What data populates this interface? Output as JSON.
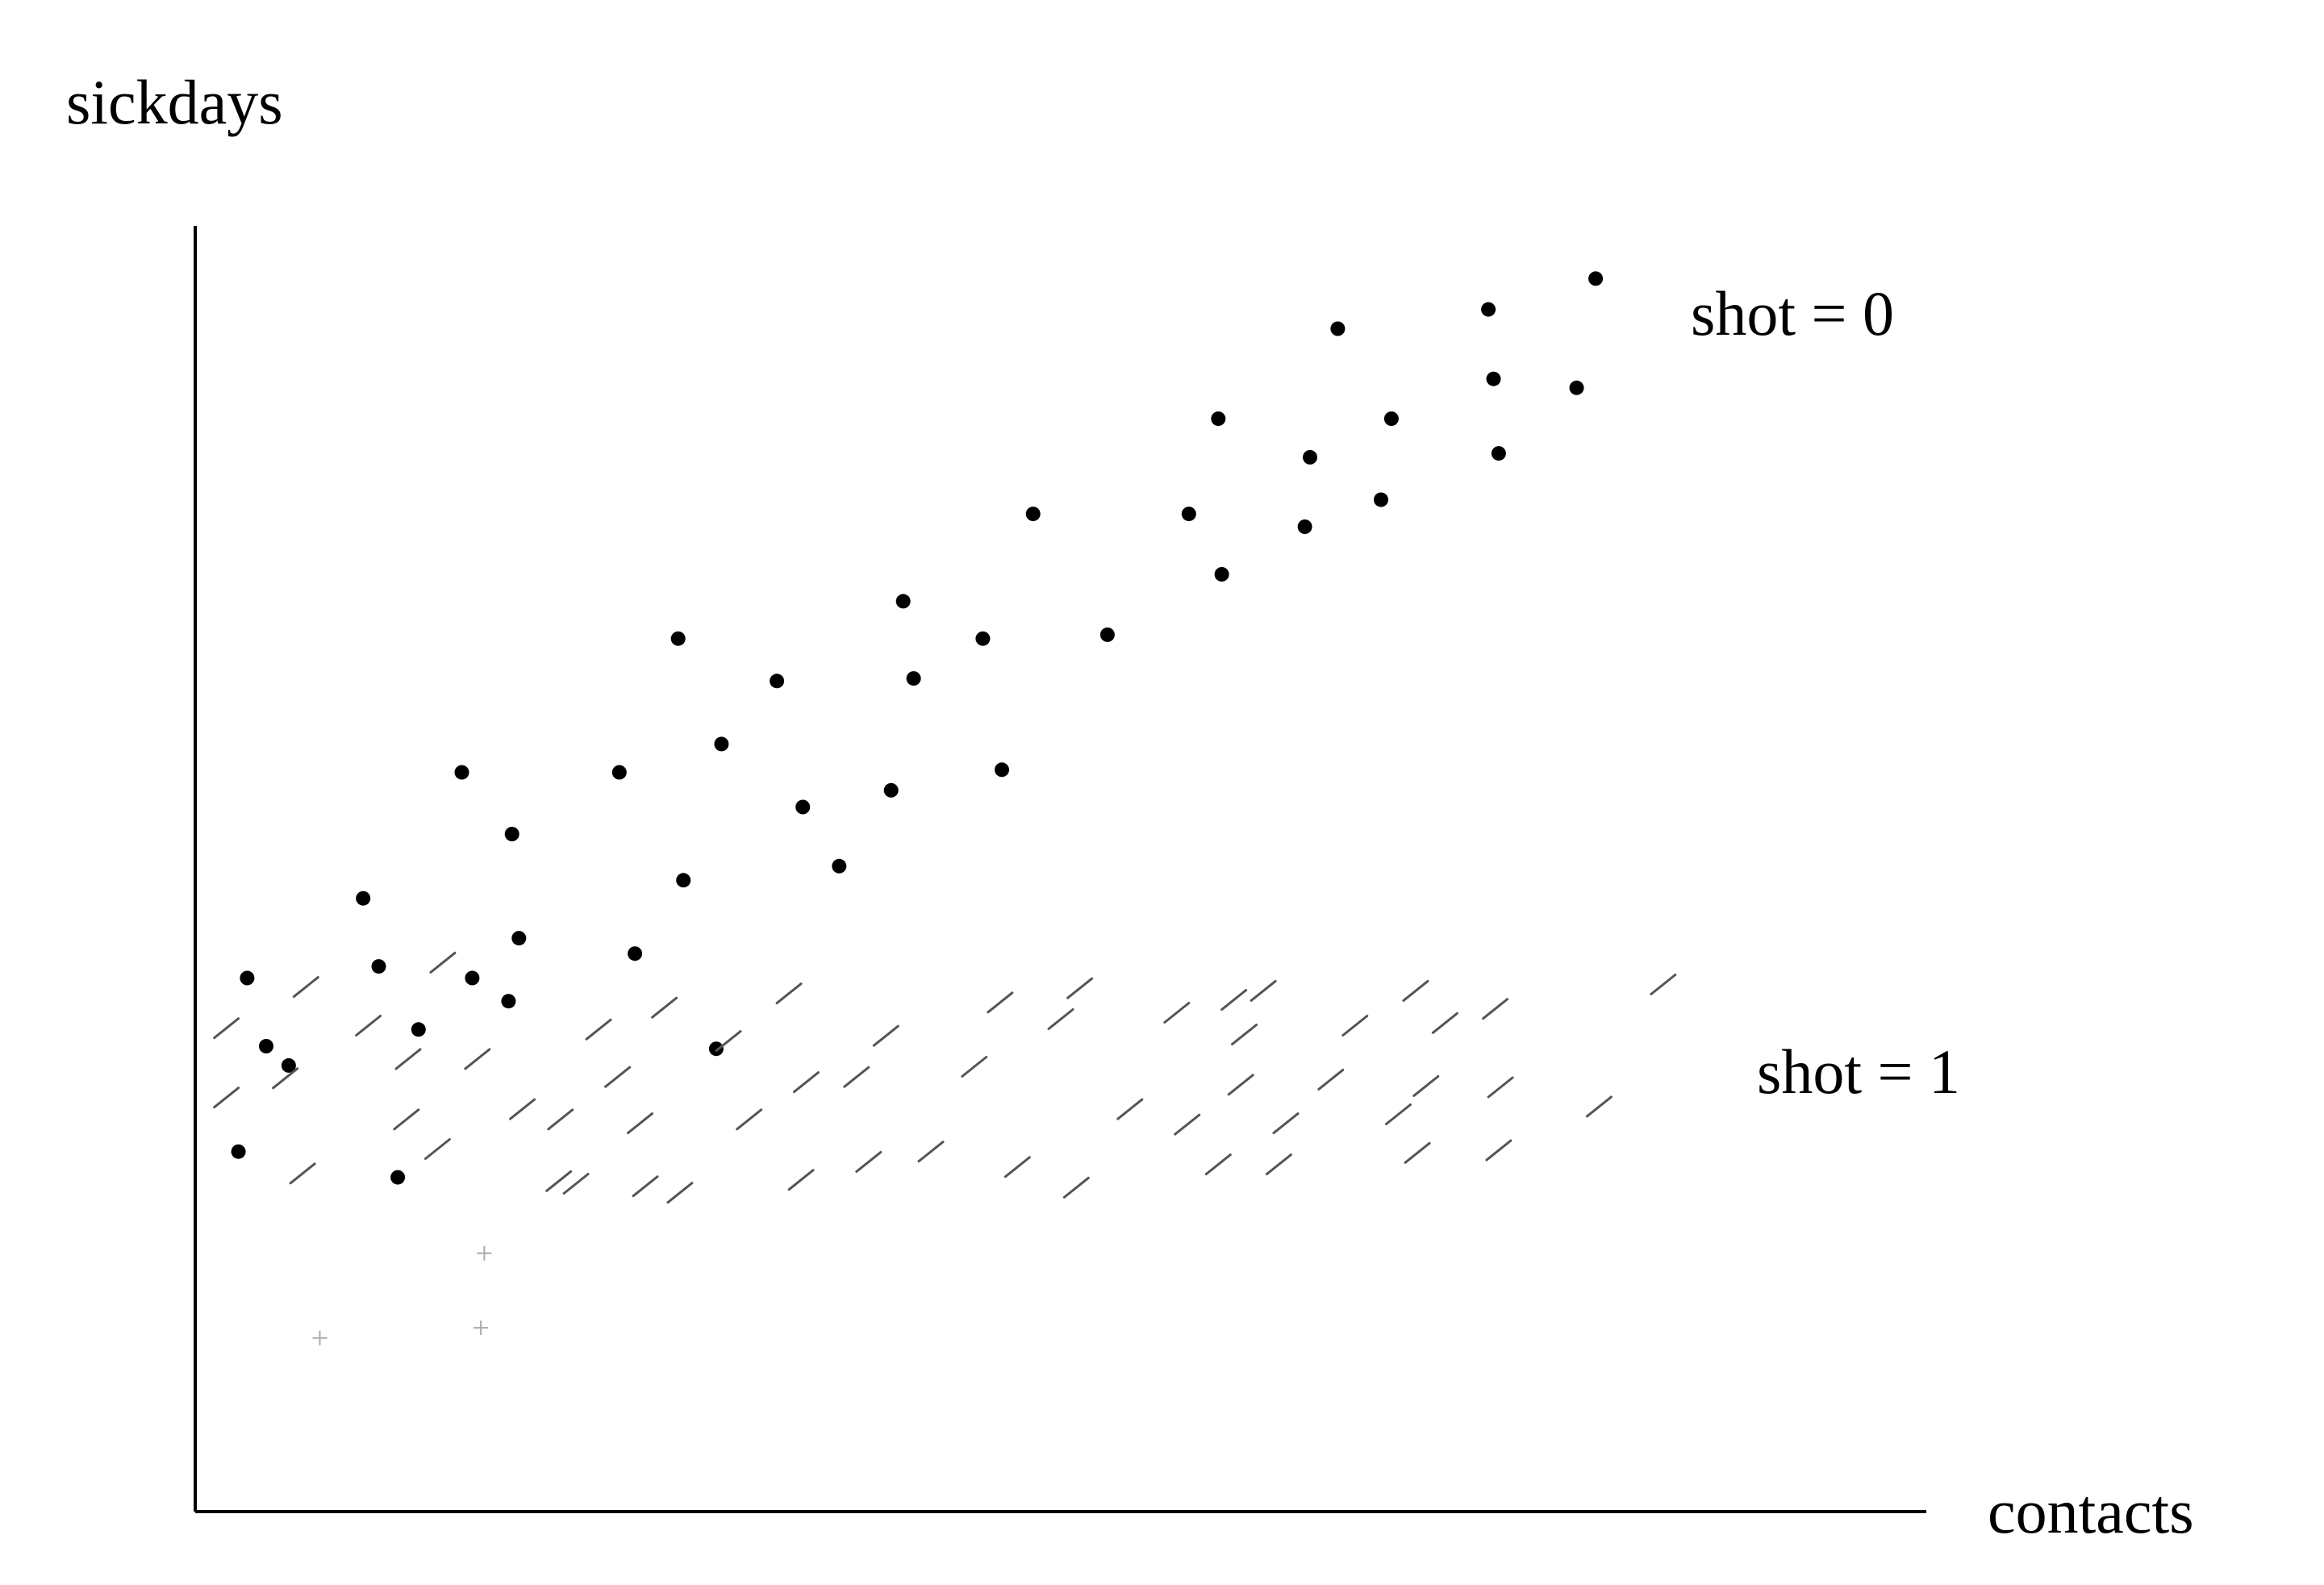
{
  "chart_data": {
    "type": "scatter",
    "title": "",
    "ylabel": "sickdays",
    "xlabel": "contacts",
    "grid": false,
    "legend": "none",
    "ticks": "none",
    "xlim": [
      0,
      100
    ],
    "ylim": [
      0,
      100
    ],
    "annotations": [
      "shot = 0",
      "shot = 1"
    ],
    "series": [
      {
        "name": "shot = 0",
        "marker": "dot",
        "color": "#000000",
        "points": [
          [
            3.0,
            41.5
          ],
          [
            4.1,
            36.2
          ],
          [
            5.4,
            34.7
          ],
          [
            2.5,
            28.0
          ],
          [
            9.7,
            47.7
          ],
          [
            10.6,
            42.4
          ],
          [
            12.9,
            37.5
          ],
          [
            11.7,
            26.0
          ],
          [
            15.4,
            57.5
          ],
          [
            16.0,
            41.5
          ],
          [
            18.3,
            52.7
          ],
          [
            18.7,
            44.6
          ],
          [
            18.1,
            39.7
          ],
          [
            24.5,
            57.5
          ],
          [
            25.4,
            43.4
          ],
          [
            27.9,
            67.9
          ],
          [
            28.2,
            49.1
          ],
          [
            30.4,
            59.7
          ],
          [
            30.1,
            36.0
          ],
          [
            33.6,
            64.6
          ],
          [
            35.1,
            54.8
          ],
          [
            37.2,
            50.2
          ],
          [
            40.2,
            56.1
          ],
          [
            40.9,
            70.8
          ],
          [
            41.5,
            64.8
          ],
          [
            45.5,
            67.9
          ],
          [
            46.6,
            57.7
          ],
          [
            48.4,
            77.6
          ],
          [
            52.7,
            68.2
          ],
          [
            57.4,
            77.6
          ],
          [
            59.1,
            85.0
          ],
          [
            59.3,
            72.9
          ],
          [
            64.1,
            76.6
          ],
          [
            64.4,
            82.0
          ],
          [
            66.0,
            92.0
          ],
          [
            68.5,
            78.7
          ],
          [
            69.1,
            85.0
          ],
          [
            74.7,
            93.5
          ],
          [
            75.0,
            88.1
          ],
          [
            75.3,
            82.3
          ],
          [
            79.8,
            87.4
          ],
          [
            80.9,
            95.9
          ]
        ]
      },
      {
        "name": "shot = 1",
        "marker": "slash",
        "color": "#555555",
        "points": [
          [
            1.8,
            37.6
          ],
          [
            1.8,
            32.2
          ],
          [
            6.4,
            40.8
          ],
          [
            5.2,
            33.7
          ],
          [
            6.2,
            26.3
          ],
          [
            10.0,
            37.8
          ],
          [
            12.3,
            35.2
          ],
          [
            12.2,
            30.5
          ],
          [
            14.3,
            42.7
          ],
          [
            14.0,
            28.2
          ],
          [
            16.3,
            35.2
          ],
          [
            18.9,
            31.3
          ],
          [
            21.1,
            30.5
          ],
          [
            23.3,
            37.5
          ],
          [
            24.4,
            33.8
          ],
          [
            25.7,
            30.2
          ],
          [
            21.0,
            25.7
          ],
          [
            22.0,
            25.5
          ],
          [
            26.0,
            25.3
          ],
          [
            28.0,
            24.8
          ],
          [
            27.1,
            39.2
          ],
          [
            30.8,
            36.6
          ],
          [
            32.0,
            30.5
          ],
          [
            34.3,
            40.3
          ],
          [
            35.3,
            33.4
          ],
          [
            35.0,
            25.8
          ],
          [
            38.2,
            33.8
          ],
          [
            39.9,
            37.0
          ],
          [
            38.9,
            27.2
          ],
          [
            42.5,
            28.0
          ],
          [
            45.0,
            34.6
          ],
          [
            46.5,
            39.6
          ],
          [
            50.0,
            38.3
          ],
          [
            51.1,
            40.7
          ],
          [
            47.5,
            26.8
          ],
          [
            50.9,
            25.2
          ],
          [
            54.0,
            31.3
          ],
          [
            56.7,
            38.8
          ],
          [
            57.3,
            30.1
          ],
          [
            60.0,
            39.8
          ],
          [
            60.6,
            37.1
          ],
          [
            60.4,
            33.2
          ],
          [
            61.7,
            40.5
          ],
          [
            63.0,
            30.2
          ],
          [
            59.1,
            27.0
          ],
          [
            62.6,
            27.0
          ],
          [
            65.6,
            33.6
          ],
          [
            67.0,
            37.8
          ],
          [
            69.5,
            30.9
          ],
          [
            70.5,
            40.5
          ],
          [
            71.1,
            33.1
          ],
          [
            72.2,
            38.0
          ],
          [
            70.6,
            27.9
          ],
          [
            75.1,
            39.1
          ],
          [
            75.4,
            33.0
          ],
          [
            75.3,
            28.1
          ],
          [
            81.1,
            31.5
          ],
          [
            84.8,
            41.0
          ]
        ]
      },
      {
        "name": "",
        "marker": "plus",
        "color": "#aaaaaa",
        "points": [
          [
            16.7,
            20.1
          ],
          [
            16.5,
            14.3
          ],
          [
            7.2,
            13.5
          ]
        ]
      }
    ]
  }
}
